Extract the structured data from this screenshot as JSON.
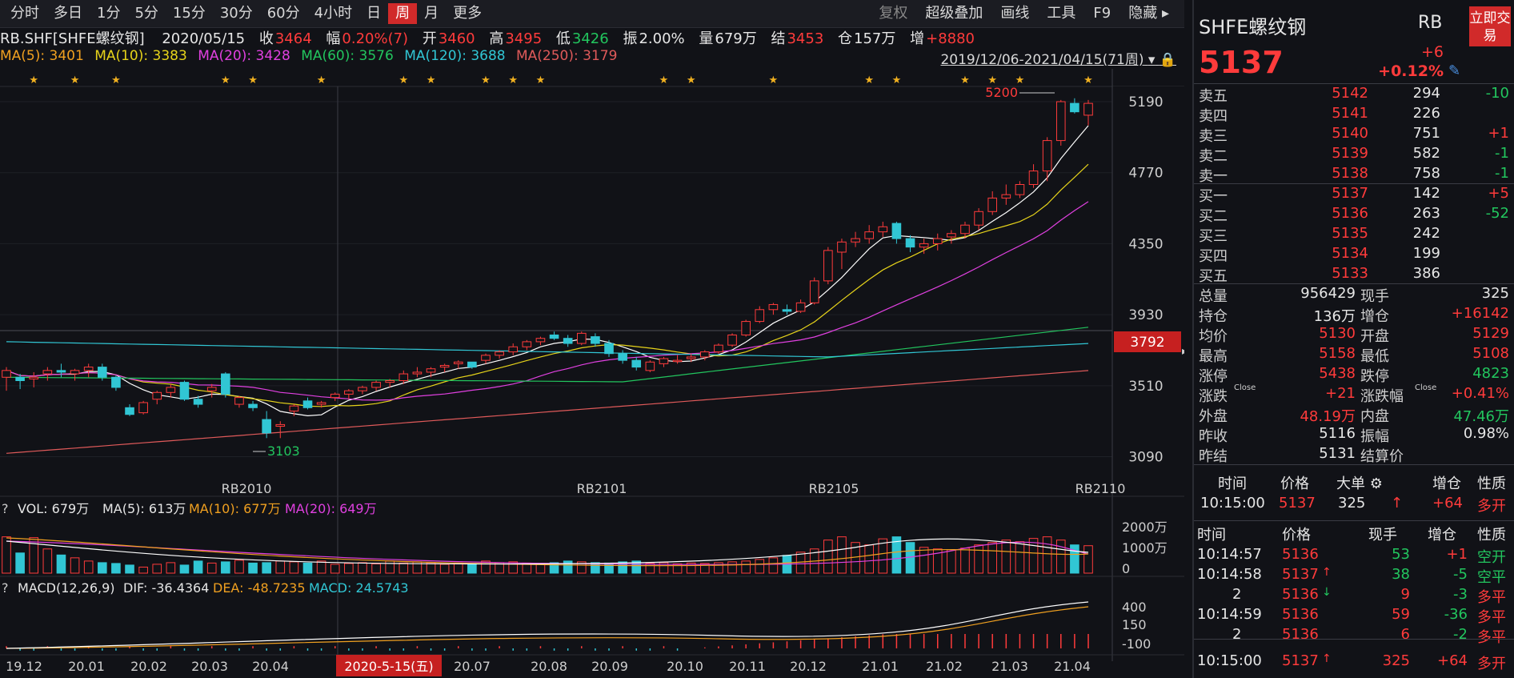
{
  "toolbar": {
    "periods": [
      "分时",
      "多日",
      "1分",
      "5分",
      "15分",
      "30分",
      "60分",
      "4小时",
      "日",
      "周",
      "月",
      "更多"
    ],
    "active_period": "周",
    "tools": [
      "复权",
      "超级叠加",
      "画线",
      "工具",
      "F9",
      "隐藏"
    ]
  },
  "info": {
    "symbol": "RB.SHF[SHFE螺纹钢]",
    "date": "2020/05/15",
    "close_label": "收",
    "close": "3464",
    "range_label": "幅",
    "range": "0.20%(7)",
    "open_label": "开",
    "open": "3460",
    "high_label": "高",
    "high": "3495",
    "low_label": "低",
    "low": "3426",
    "amp_label": "振",
    "amp": "2.00%",
    "vol_label": "量",
    "vol": "679万",
    "settle_label": "结",
    "settle": "3453",
    "oi_label": "仓",
    "oi": "157万",
    "inc_label": "增",
    "inc": "+8880"
  },
  "ma": {
    "ma5": "MA(5): 3401",
    "ma10": "MA(10): 3383",
    "ma20": "MA(20): 3428",
    "ma60": "MA(60): 3576",
    "ma120": "MA(120): 3688",
    "ma250": "MA(250): 3179",
    "daterange": "2019/12/06-2021/04/15(71周)"
  },
  "price_axis": {
    "ticks": [
      "5190",
      "4770",
      "4350",
      "3930",
      "3510",
      "3090"
    ],
    "current": "3792"
  },
  "contracts": [
    "RB2010",
    "RB2101",
    "RB2105",
    "RB2110"
  ],
  "annotations": {
    "high": "5200",
    "low": "3103"
  },
  "vol_panel": {
    "title": "VOL: 679万",
    "ma5": "MA(5): 613万",
    "ma10": "MA(10): 677万",
    "ma20": "MA(20): 649万",
    "ticks": [
      "2000万",
      "1000万",
      "0"
    ]
  },
  "macd_panel": {
    "title": "MACD(12,26,9)",
    "dif": "DIF: -36.4364",
    "dea": "DEA: -48.7235",
    "macd": "MACD: 24.5743",
    "ticks": [
      "400",
      "150",
      "-100"
    ]
  },
  "time_axis": [
    "19.12",
    "20.01",
    "20.02",
    "20.03",
    "20.04",
    "20.07",
    "20.08",
    "20.09",
    "20.10",
    "20.11",
    "20.12",
    "21.01",
    "21.02",
    "21.03",
    "21.04"
  ],
  "time_axis_marker": "2020-5-15(五)",
  "chart_data": {
    "type": "candlestick",
    "title": "RB.SHF[SHFE螺纹钢]",
    "y_range": [
      2960,
      5280
    ],
    "candles": [
      [
        3560,
        3620,
        3480,
        3600
      ],
      [
        3560,
        3580,
        3490,
        3540
      ],
      [
        3550,
        3590,
        3500,
        3560
      ],
      [
        3580,
        3620,
        3540,
        3600
      ],
      [
        3600,
        3640,
        3560,
        3590
      ],
      [
        3580,
        3610,
        3540,
        3600
      ],
      [
        3600,
        3640,
        3560,
        3620
      ],
      [
        3620,
        3640,
        3540,
        3560
      ],
      [
        3560,
        3570,
        3480,
        3500
      ],
      [
        3380,
        3400,
        3330,
        3340
      ],
      [
        3350,
        3420,
        3340,
        3410
      ],
      [
        3430,
        3480,
        3400,
        3470
      ],
      [
        3470,
        3520,
        3440,
        3500
      ],
      [
        3530,
        3540,
        3420,
        3430
      ],
      [
        3430,
        3450,
        3380,
        3400
      ],
      [
        3480,
        3520,
        3440,
        3500
      ],
      [
        3580,
        3590,
        3440,
        3460
      ],
      [
        3400,
        3450,
        3380,
        3440
      ],
      [
        3400,
        3420,
        3360,
        3380
      ],
      [
        3310,
        3360,
        3200,
        3230
      ],
      [
        3270,
        3300,
        3200,
        3280
      ],
      [
        3360,
        3400,
        3330,
        3390
      ],
      [
        3420,
        3440,
        3370,
        3380
      ],
      [
        3400,
        3420,
        3380,
        3410
      ],
      [
        3440,
        3470,
        3420,
        3460
      ],
      [
        3460,
        3490,
        3430,
        3480
      ],
      [
        3480,
        3510,
        3460,
        3500
      ],
      [
        3500,
        3540,
        3480,
        3530
      ],
      [
        3530,
        3550,
        3500,
        3540
      ],
      [
        3540,
        3600,
        3520,
        3580
      ],
      [
        3580,
        3620,
        3560,
        3590
      ],
      [
        3590,
        3620,
        3560,
        3610
      ],
      [
        3620,
        3640,
        3590,
        3630
      ],
      [
        3640,
        3660,
        3610,
        3650
      ],
      [
        3650,
        3630,
        3610,
        3620
      ],
      [
        3660,
        3700,
        3640,
        3690
      ],
      [
        3690,
        3720,
        3670,
        3710
      ],
      [
        3710,
        3760,
        3690,
        3740
      ],
      [
        3740,
        3780,
        3720,
        3770
      ],
      [
        3770,
        3800,
        3750,
        3790
      ],
      [
        3810,
        3830,
        3780,
        3790
      ],
      [
        3790,
        3810,
        3740,
        3760
      ],
      [
        3760,
        3830,
        3750,
        3820
      ],
      [
        3800,
        3820,
        3740,
        3760
      ],
      [
        3760,
        3780,
        3680,
        3700
      ],
      [
        3700,
        3720,
        3640,
        3660
      ],
      [
        3660,
        3680,
        3600,
        3620
      ],
      [
        3600,
        3660,
        3590,
        3650
      ],
      [
        3640,
        3680,
        3620,
        3670
      ],
      [
        3660,
        3690,
        3640,
        3660
      ],
      [
        3670,
        3700,
        3650,
        3680
      ],
      [
        3680,
        3720,
        3660,
        3710
      ],
      [
        3710,
        3760,
        3700,
        3750
      ],
      [
        3750,
        3820,
        3740,
        3810
      ],
      [
        3810,
        3900,
        3800,
        3890
      ],
      [
        3890,
        3980,
        3880,
        3960
      ],
      [
        3960,
        4000,
        3930,
        3990
      ],
      [
        3960,
        3990,
        3930,
        3950
      ],
      [
        3950,
        4020,
        3940,
        4000
      ],
      [
        4000,
        4150,
        3990,
        4130
      ],
      [
        4130,
        4330,
        4110,
        4310
      ],
      [
        4300,
        4380,
        4200,
        4360
      ],
      [
        4360,
        4420,
        4330,
        4380
      ],
      [
        4380,
        4460,
        4350,
        4420
      ],
      [
        4420,
        4480,
        4390,
        4450
      ],
      [
        4470,
        4480,
        4350,
        4380
      ],
      [
        4380,
        4400,
        4300,
        4330
      ],
      [
        4330,
        4380,
        4290,
        4350
      ],
      [
        4350,
        4410,
        4310,
        4380
      ],
      [
        4390,
        4430,
        4350,
        4410
      ],
      [
        4410,
        4480,
        4380,
        4460
      ],
      [
        4460,
        4560,
        4430,
        4540
      ],
      [
        4540,
        4660,
        4520,
        4620
      ],
      [
        4620,
        4700,
        4580,
        4640
      ],
      [
        4640,
        4720,
        4620,
        4700
      ],
      [
        4700,
        4820,
        4680,
        4780
      ],
      [
        4780,
        4980,
        4720,
        4960
      ],
      [
        4960,
        5200,
        4930,
        5190
      ],
      [
        5180,
        5210,
        5120,
        5130
      ],
      [
        5110,
        5200,
        5050,
        5180
      ]
    ]
  },
  "right_panel": {
    "name": "SHFE螺纹钢",
    "code": "RB",
    "trade_btn": "立即交易",
    "price": "5137",
    "change": "+6",
    "change_pct": "+0.12%",
    "asks": [
      {
        "label": "卖五",
        "price": "5142",
        "vol": "294",
        "chg": "-10"
      },
      {
        "label": "卖四",
        "price": "5141",
        "vol": "226",
        "chg": ""
      },
      {
        "label": "卖三",
        "price": "5140",
        "vol": "751",
        "chg": "+1"
      },
      {
        "label": "卖二",
        "price": "5139",
        "vol": "582",
        "chg": "-1"
      },
      {
        "label": "卖一",
        "price": "5138",
        "vol": "758",
        "chg": "-1"
      }
    ],
    "bids": [
      {
        "label": "买一",
        "price": "5137",
        "vol": "142",
        "chg": "+5"
      },
      {
        "label": "买二",
        "price": "5136",
        "vol": "263",
        "chg": "-52"
      },
      {
        "label": "买三",
        "price": "5135",
        "vol": "242",
        "chg": ""
      },
      {
        "label": "买四",
        "price": "5134",
        "vol": "199",
        "chg": ""
      },
      {
        "label": "买五",
        "price": "5133",
        "vol": "386",
        "chg": ""
      }
    ],
    "stats": [
      {
        "l1": "总量",
        "v1": "956429",
        "l2": "现手",
        "v2": "325"
      },
      {
        "l1": "持仓",
        "v1": "136万",
        "l2": "增仓",
        "v2": "+16142"
      },
      {
        "l1": "均价",
        "v1": "5130",
        "l2": "开盘",
        "v2": "5129"
      },
      {
        "l1": "最高",
        "v1": "5158",
        "l2": "最低",
        "v2": "5108"
      },
      {
        "l1": "涨停",
        "v1": "5438",
        "l2": "跌停",
        "v2": "4823"
      },
      {
        "l1": "涨跌",
        "v1": "+21",
        "l2": "涨跌幅",
        "v2": "+0.41%"
      },
      {
        "l1": "外盘",
        "v1": "48.19万",
        "l2": "内盘",
        "v2": "47.46万"
      },
      {
        "l1": "昨收",
        "v1": "5116",
        "l2": "振幅",
        "v2": "0.98%"
      },
      {
        "l1": "昨结",
        "v1": "5131",
        "l2": "结算价",
        "v2": ""
      }
    ],
    "close_tag": "Close",
    "big_header": {
      "time": "时间",
      "price": "价格",
      "big": "大单",
      "inc": "增仓",
      "nature": "性质"
    },
    "big_row": {
      "time": "10:15:00",
      "price": "5137",
      "vol": "325",
      "inc": "+64",
      "nature": "多开"
    },
    "tick_header": {
      "time": "时间",
      "price": "价格",
      "vol": "现手",
      "inc": "增仓",
      "nature": "性质"
    },
    "ticks": [
      {
        "time": "10:14:57",
        "price": "5136",
        "arrow": "",
        "vol": "53",
        "inc": "+1",
        "nature": "空开"
      },
      {
        "time": "10:14:58",
        "price": "5137",
        "arrow": "up",
        "vol": "38",
        "inc": "-5",
        "nature": "空平"
      },
      {
        "time": "2",
        "price": "5136",
        "arrow": "down",
        "vol": "9",
        "inc": "-3",
        "nature": "多平"
      },
      {
        "time": "10:14:59",
        "price": "5136",
        "arrow": "",
        "vol": "59",
        "inc": "-36",
        "nature": "多平"
      },
      {
        "time": "2",
        "price": "5136",
        "arrow": "",
        "vol": "6",
        "inc": "-2",
        "nature": "多平"
      },
      {
        "time": "10:15:00",
        "price": "5137",
        "arrow": "up",
        "vol": "325",
        "inc": "+64",
        "nature": "多开"
      }
    ]
  }
}
